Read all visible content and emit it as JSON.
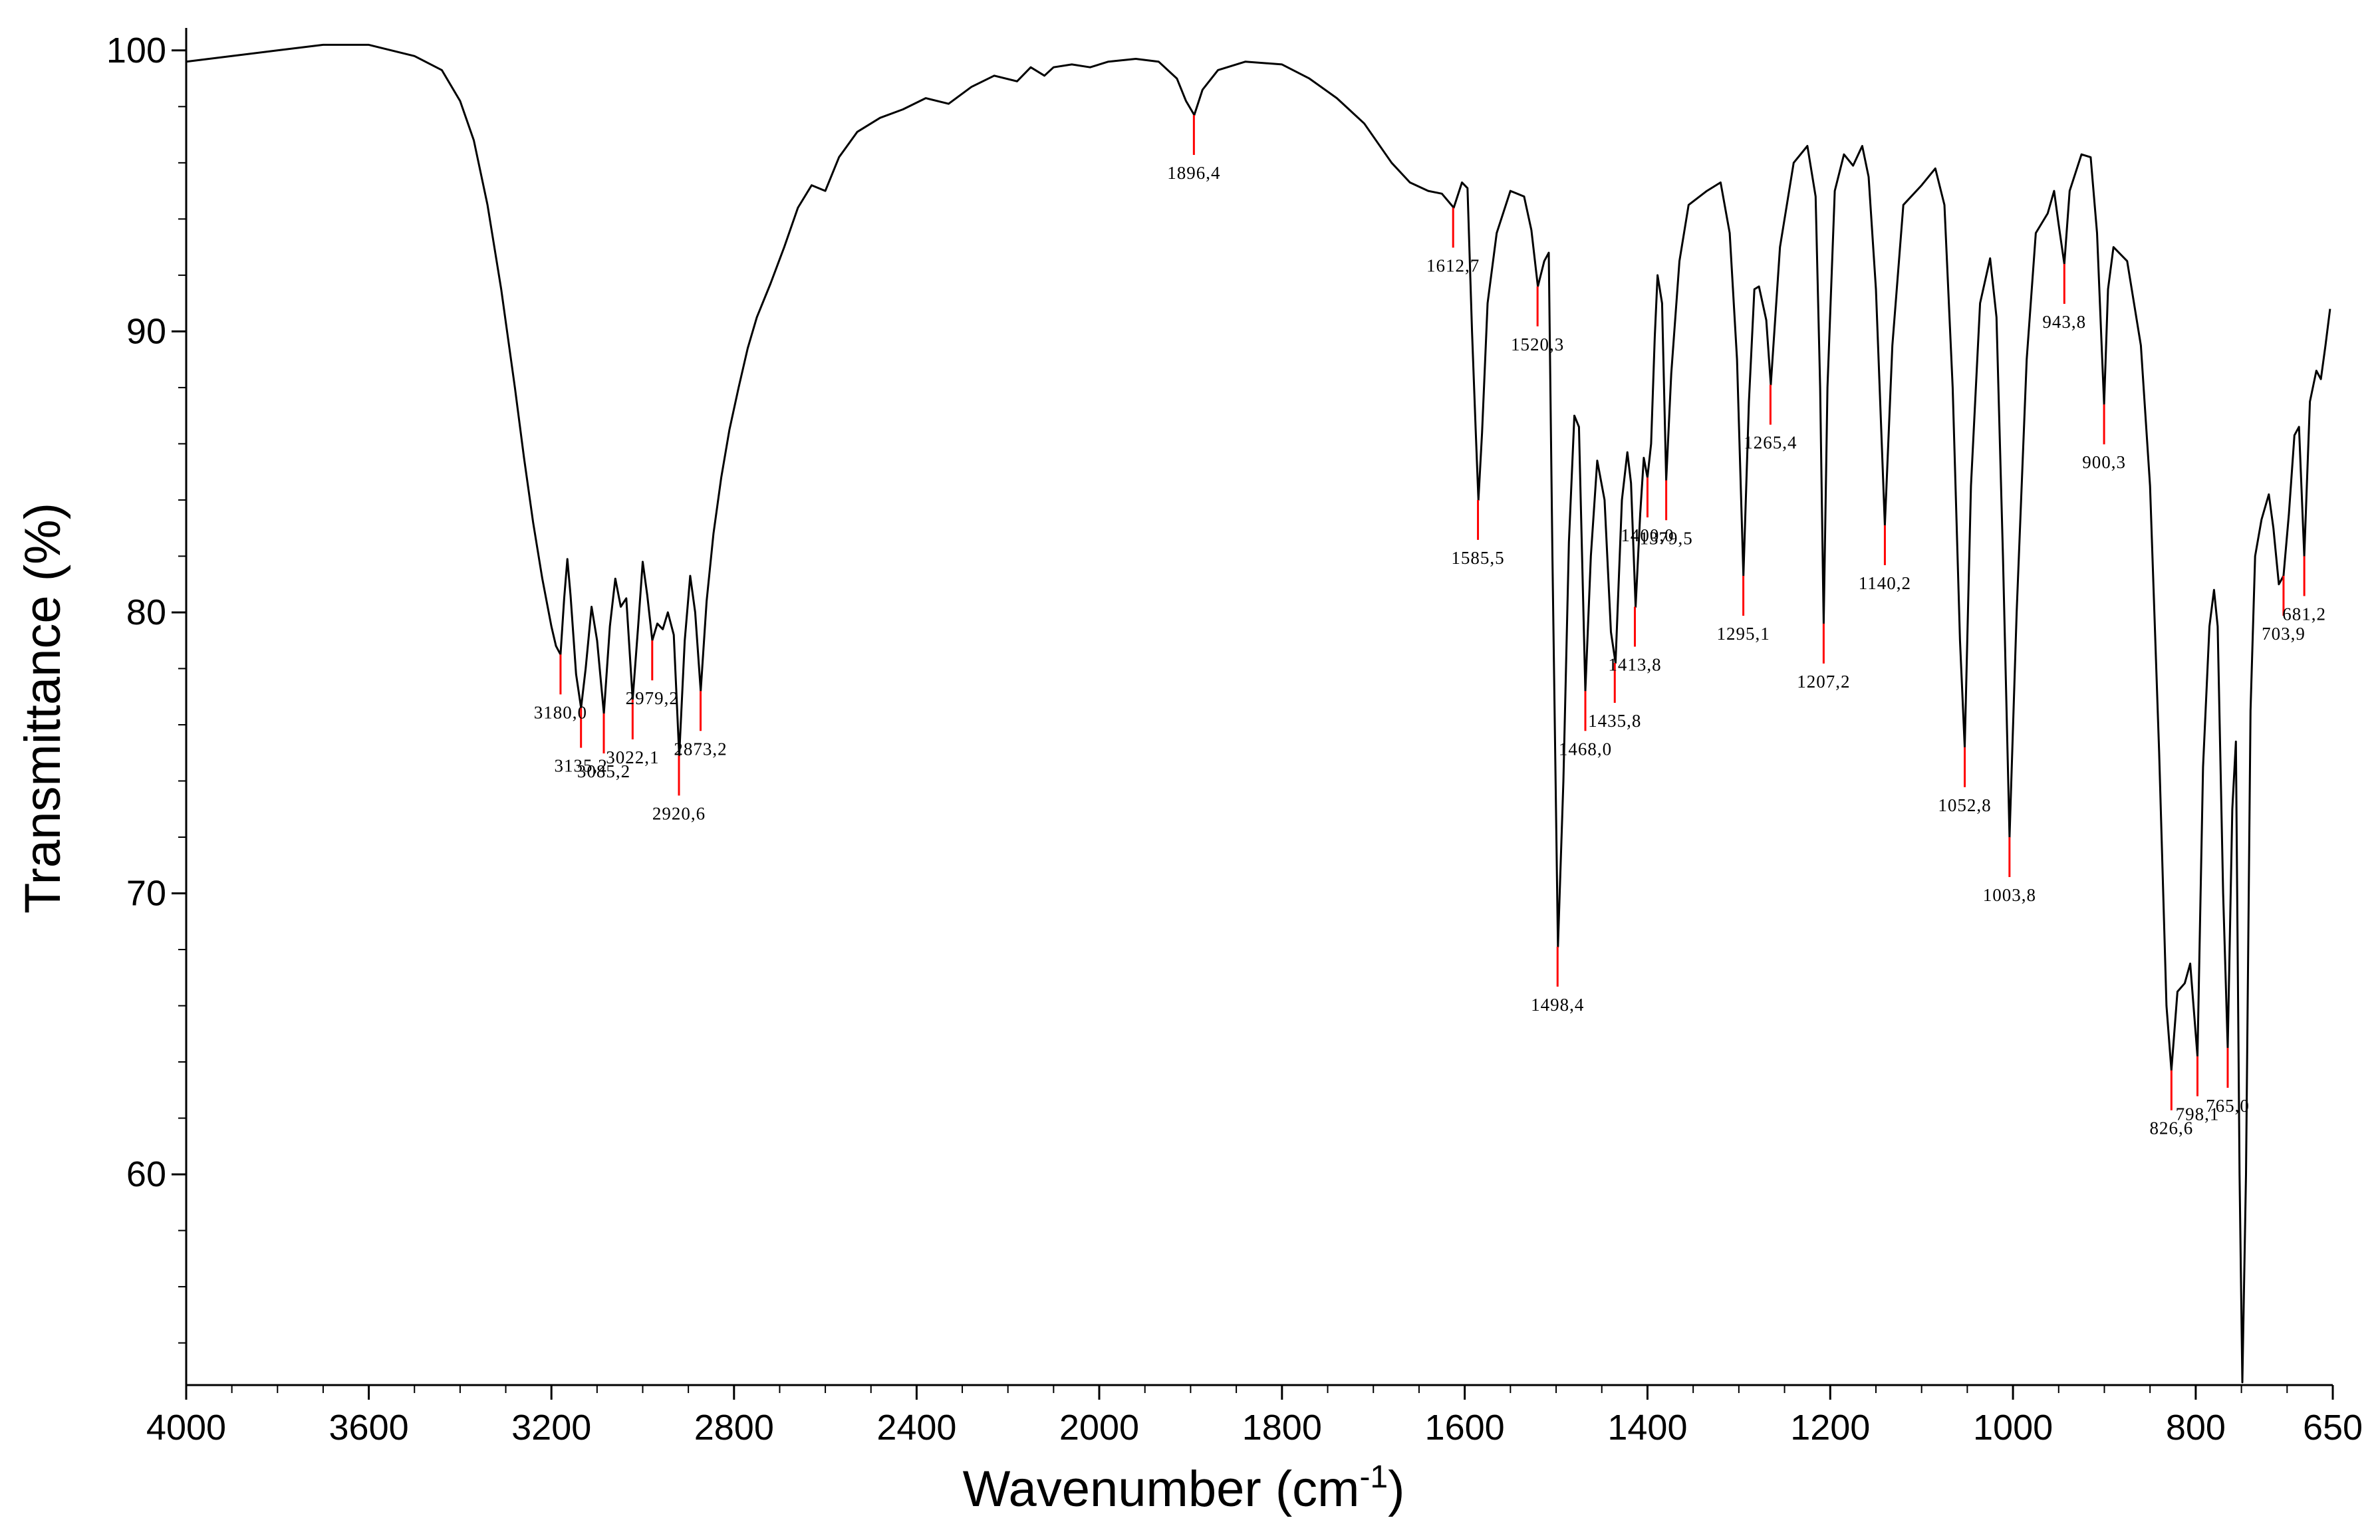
{
  "chart_data": {
    "type": "line",
    "xlabel": "Wavenumber (cm",
    "xlabel_sup": "-1",
    "xlabel_close": ")",
    "ylabel": "Transmittance (%)",
    "xlim": [
      4000,
      650
    ],
    "ylim": [
      52.5,
      100.8
    ],
    "x_reversed": true,
    "grid": false,
    "x_ticks": [
      "4000",
      "3600",
      "3200",
      "2800",
      "2400",
      "2000",
      "1800",
      "1600",
      "1400",
      "1200",
      "1000",
      "800",
      "650"
    ],
    "y_ticks": [
      "100",
      "90",
      "80",
      "70",
      "60"
    ],
    "line_color": "#000000",
    "marker_color": "#ff0000",
    "series": [
      {
        "values": [
          [
            4000,
            99.6
          ],
          [
            3900,
            99.8
          ],
          [
            3800,
            100.0
          ],
          [
            3700,
            100.2
          ],
          [
            3600,
            100.2
          ],
          [
            3500,
            99.8
          ],
          [
            3440,
            99.3
          ],
          [
            3400,
            98.2
          ],
          [
            3370,
            96.8
          ],
          [
            3340,
            94.5
          ],
          [
            3310,
            91.5
          ],
          [
            3280,
            88.0
          ],
          [
            3260,
            85.5
          ],
          [
            3240,
            83.2
          ],
          [
            3220,
            81.2
          ],
          [
            3200,
            79.5
          ],
          [
            3190,
            78.8
          ],
          [
            3180,
            78.5
          ],
          [
            3172,
            80.5
          ],
          [
            3165,
            81.9
          ],
          [
            3158,
            80.6
          ],
          [
            3146,
            77.8
          ],
          [
            3135,
            76.6
          ],
          [
            3125,
            78.0
          ],
          [
            3112,
            80.2
          ],
          [
            3100,
            79.0
          ],
          [
            3085,
            76.4
          ],
          [
            3072,
            79.5
          ],
          [
            3060,
            81.2
          ],
          [
            3048,
            80.2
          ],
          [
            3036,
            80.5
          ],
          [
            3022,
            76.9
          ],
          [
            3010,
            79.5
          ],
          [
            3000,
            81.8
          ],
          [
            2990,
            80.6
          ],
          [
            2979,
            79.0
          ],
          [
            2968,
            79.6
          ],
          [
            2956,
            79.4
          ],
          [
            2945,
            80.0
          ],
          [
            2932,
            79.2
          ],
          [
            2920,
            74.9
          ],
          [
            2908,
            79.0
          ],
          [
            2896,
            81.3
          ],
          [
            2885,
            80.0
          ],
          [
            2873,
            77.2
          ],
          [
            2860,
            80.4
          ],
          [
            2845,
            82.8
          ],
          [
            2828,
            84.8
          ],
          [
            2810,
            86.5
          ],
          [
            2790,
            88.0
          ],
          [
            2770,
            89.4
          ],
          [
            2750,
            90.5
          ],
          [
            2720,
            91.7
          ],
          [
            2690,
            93.0
          ],
          [
            2660,
            94.4
          ],
          [
            2630,
            95.2
          ],
          [
            2600,
            95.0
          ],
          [
            2570,
            96.2
          ],
          [
            2530,
            97.1
          ],
          [
            2480,
            97.6
          ],
          [
            2430,
            97.9
          ],
          [
            2380,
            98.3
          ],
          [
            2330,
            98.1
          ],
          [
            2280,
            98.7
          ],
          [
            2230,
            99.1
          ],
          [
            2180,
            98.9
          ],
          [
            2150,
            99.4
          ],
          [
            2120,
            99.1
          ],
          [
            2100,
            99.4
          ],
          [
            2060,
            99.5
          ],
          [
            2020,
            99.4
          ],
          [
            1990,
            99.6
          ],
          [
            1960,
            99.7
          ],
          [
            1935,
            99.6
          ],
          [
            1915,
            99.0
          ],
          [
            1905,
            98.2
          ],
          [
            1896,
            97.7
          ],
          [
            1887,
            98.6
          ],
          [
            1870,
            99.3
          ],
          [
            1840,
            99.6
          ],
          [
            1800,
            99.5
          ],
          [
            1770,
            99.0
          ],
          [
            1740,
            98.3
          ],
          [
            1710,
            97.4
          ],
          [
            1680,
            96.0
          ],
          [
            1660,
            95.3
          ],
          [
            1640,
            95.0
          ],
          [
            1625,
            94.9
          ],
          [
            1612,
            94.4
          ],
          [
            1603,
            95.3
          ],
          [
            1597,
            95.1
          ],
          [
            1592,
            90.0
          ],
          [
            1588,
            86.5
          ],
          [
            1585,
            84.0
          ],
          [
            1581,
            86.4
          ],
          [
            1575,
            91.0
          ],
          [
            1565,
            93.5
          ],
          [
            1550,
            95.0
          ],
          [
            1535,
            94.8
          ],
          [
            1527,
            93.6
          ],
          [
            1520,
            91.6
          ],
          [
            1513,
            92.5
          ],
          [
            1508,
            92.8
          ],
          [
            1504,
            82.0
          ],
          [
            1498,
            68.1
          ],
          [
            1492,
            74.0
          ],
          [
            1486,
            82.5
          ],
          [
            1480,
            87.0
          ],
          [
            1475,
            86.6
          ],
          [
            1468,
            77.2
          ],
          [
            1462,
            82.0
          ],
          [
            1455,
            85.4
          ],
          [
            1447,
            84.0
          ],
          [
            1440,
            79.3
          ],
          [
            1435,
            78.2
          ],
          [
            1428,
            84.0
          ],
          [
            1422,
            85.7
          ],
          [
            1418,
            84.6
          ],
          [
            1413,
            80.2
          ],
          [
            1408,
            83.5
          ],
          [
            1404,
            85.5
          ],
          [
            1400,
            84.8
          ],
          [
            1396,
            86.0
          ],
          [
            1392,
            89.8
          ],
          [
            1389,
            92.0
          ],
          [
            1384,
            91.0
          ],
          [
            1379.5,
            84.7
          ],
          [
            1374,
            88.5
          ],
          [
            1365,
            92.5
          ],
          [
            1355,
            94.5
          ],
          [
            1335,
            95.0
          ],
          [
            1320,
            95.3
          ],
          [
            1310,
            93.5
          ],
          [
            1302,
            89.0
          ],
          [
            1295,
            81.3
          ],
          [
            1289,
            87.5
          ],
          [
            1283,
            91.5
          ],
          [
            1278,
            91.6
          ],
          [
            1270,
            90.4
          ],
          [
            1265,
            88.1
          ],
          [
            1255,
            93.0
          ],
          [
            1240,
            96.0
          ],
          [
            1225,
            96.6
          ],
          [
            1216,
            94.8
          ],
          [
            1211,
            88.0
          ],
          [
            1207.2,
            79.6
          ],
          [
            1203,
            88.0
          ],
          [
            1195,
            95.0
          ],
          [
            1185,
            96.3
          ],
          [
            1175,
            95.9
          ],
          [
            1165,
            96.6
          ],
          [
            1158,
            95.5
          ],
          [
            1150,
            91.5
          ],
          [
            1140.2,
            83.1
          ],
          [
            1132,
            89.5
          ],
          [
            1120,
            94.5
          ],
          [
            1100,
            95.2
          ],
          [
            1085,
            95.8
          ],
          [
            1075,
            94.5
          ],
          [
            1066,
            88.0
          ],
          [
            1058,
            79.0
          ],
          [
            1052.8,
            75.2
          ],
          [
            1046,
            84.5
          ],
          [
            1036,
            91.0
          ],
          [
            1025,
            92.6
          ],
          [
            1018,
            90.5
          ],
          [
            1011,
            82.0
          ],
          [
            1003.8,
            72.0
          ],
          [
            996,
            80.0
          ],
          [
            985,
            89.0
          ],
          [
            975,
            93.5
          ],
          [
            962,
            94.2
          ],
          [
            955,
            95.0
          ],
          [
            950,
            93.8
          ],
          [
            943.8,
            92.4
          ],
          [
            938,
            95.0
          ],
          [
            925,
            96.3
          ],
          [
            915,
            96.2
          ],
          [
            908,
            93.5
          ],
          [
            903,
            89.5
          ],
          [
            900.3,
            87.4
          ],
          [
            896,
            91.5
          ],
          [
            890,
            93.0
          ],
          [
            875,
            92.5
          ],
          [
            860,
            89.5
          ],
          [
            850,
            84.5
          ],
          [
            840,
            75.0
          ],
          [
            832,
            66.0
          ],
          [
            826.6,
            63.7
          ],
          [
            820,
            66.5
          ],
          [
            812,
            66.8
          ],
          [
            806,
            67.5
          ],
          [
            798.1,
            64.2
          ],
          [
            792,
            74.5
          ],
          [
            785,
            79.5
          ],
          [
            780,
            80.8
          ],
          [
            776,
            79.5
          ],
          [
            770,
            70.0
          ],
          [
            765,
            64.5
          ],
          [
            760,
            73.0
          ],
          [
            756,
            75.4
          ],
          [
            752,
            60.0
          ],
          [
            749,
            52.6
          ],
          [
            745,
            60.0
          ],
          [
            740,
            76.5
          ],
          [
            735,
            82.0
          ],
          [
            728,
            83.3
          ],
          [
            720,
            84.2
          ],
          [
            715,
            83.0
          ],
          [
            709,
            81.0
          ],
          [
            703.9,
            81.3
          ],
          [
            698,
            83.5
          ],
          [
            692,
            86.3
          ],
          [
            687,
            86.6
          ],
          [
            681.2,
            82.0
          ],
          [
            675,
            87.5
          ],
          [
            668,
            88.6
          ],
          [
            663,
            88.3
          ],
          [
            658,
            89.5
          ],
          [
            653,
            90.8
          ]
        ]
      }
    ],
    "peaks": [
      {
        "label": "3180,0",
        "x": 3180,
        "y": 78.5
      },
      {
        "label": "3135,2",
        "x": 3135.2,
        "y": 76.6
      },
      {
        "label": "3085,2",
        "x": 3085.2,
        "y": 76.4
      },
      {
        "label": "3022,1",
        "x": 3022.1,
        "y": 76.9
      },
      {
        "label": "2979,2",
        "x": 2979.2,
        "y": 79.0
      },
      {
        "label": "2920,6",
        "x": 2920.6,
        "y": 74.9
      },
      {
        "label": "2873,2",
        "x": 2873.2,
        "y": 77.2
      },
      {
        "label": "1896,4",
        "x": 1896.4,
        "y": 97.7
      },
      {
        "label": "1612,7",
        "x": 1612.7,
        "y": 94.4
      },
      {
        "label": "1585,5",
        "x": 1585.5,
        "y": 84.0
      },
      {
        "label": "1520,3",
        "x": 1520.3,
        "y": 91.6
      },
      {
        "label": "1498,4",
        "x": 1498.4,
        "y": 68.1
      },
      {
        "label": "1468,0",
        "x": 1468.0,
        "y": 77.2
      },
      {
        "label": "1435,8",
        "x": 1435.8,
        "y": 78.2
      },
      {
        "label": "1413,8",
        "x": 1413.8,
        "y": 80.2
      },
      {
        "label": "1400,0",
        "x": 1400.0,
        "y": 84.8
      },
      {
        "label": "1379,5",
        "x": 1379.5,
        "y": 84.7
      },
      {
        "label": "1295,1",
        "x": 1295.1,
        "y": 81.3
      },
      {
        "label": "1265,4",
        "x": 1265.4,
        "y": 88.1
      },
      {
        "label": "1207,2",
        "x": 1207.2,
        "y": 79.6
      },
      {
        "label": "1140,2",
        "x": 1140.2,
        "y": 83.1
      },
      {
        "label": "1052,8",
        "x": 1052.8,
        "y": 75.2
      },
      {
        "label": "1003,8",
        "x": 1003.8,
        "y": 72.0
      },
      {
        "label": "943,8",
        "x": 943.8,
        "y": 92.4
      },
      {
        "label": "900,3",
        "x": 900.3,
        "y": 87.4
      },
      {
        "label": "826,6",
        "x": 826.6,
        "y": 63.7
      },
      {
        "label": "798,1",
        "x": 798.1,
        "y": 64.2
      },
      {
        "label": "765,0",
        "x": 765.0,
        "y": 64.5
      },
      {
        "label": "703,9",
        "x": 703.9,
        "y": 81.3
      },
      {
        "label": "681,2",
        "x": 681.2,
        "y": 82.0
      }
    ]
  }
}
